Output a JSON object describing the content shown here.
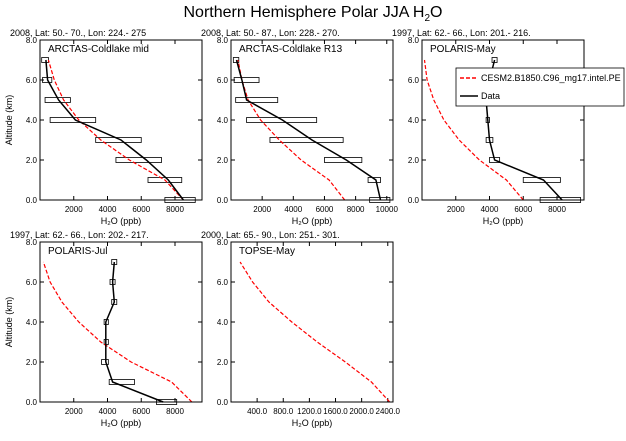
{
  "figure": {
    "title_main": "Northern Hemisphere Polar JJA H",
    "title_sub": "2",
    "title_tail": "O"
  },
  "legend": {
    "entries": [
      {
        "name": "CESM2.B1850.C96_mg17.intel.PE",
        "color": "#ff0000",
        "dash": true
      },
      {
        "name": "Data",
        "color": "#000000",
        "dash": false
      }
    ]
  },
  "chart_data": [
    {
      "type": "line",
      "panel_label": "ARCTAS-Coldlake mid",
      "header": "2008, Lat:  50.- 70., Lon: 224.- 275",
      "xlabel": "H₂O (ppb)",
      "ylabel": "Altitude (km)",
      "xlim": [
        0,
        9600
      ],
      "ylim": [
        0,
        8
      ],
      "xticks": [
        2000,
        4000,
        6000,
        8000
      ],
      "xtick_labels": [
        "2000",
        "4000",
        "6000",
        "8000"
      ],
      "yticks": [
        0,
        2,
        4,
        6,
        8
      ],
      "ytick_labels": [
        "0.0",
        "2.0",
        "4.0",
        "6.0",
        "8.0"
      ],
      "series": [
        {
          "name": "CESM2.B1850.C96_mg17.intel.PE",
          "color": "#ff0000",
          "dash": true,
          "x": [
            8500,
            7400,
            5300,
            3600,
            2300,
            1400,
            850,
            500
          ],
          "y": [
            0,
            1,
            2,
            3,
            4,
            5,
            6,
            7
          ]
        },
        {
          "name": "Data",
          "color": "#000000",
          "dash": false,
          "x": [
            8500,
            7600,
            6300,
            4800,
            2100,
            1100,
            450,
            350
          ],
          "y": [
            0,
            1,
            2,
            3,
            4,
            5,
            6,
            7
          ]
        }
      ],
      "boxes": [
        {
          "y": 7,
          "x1": 100,
          "x2": 500
        },
        {
          "y": 6,
          "x1": 150,
          "x2": 700
        },
        {
          "y": 5,
          "x1": 300,
          "x2": 1800
        },
        {
          "y": 4,
          "x1": 600,
          "x2": 3300
        },
        {
          "y": 3,
          "x1": 3300,
          "x2": 6000
        },
        {
          "y": 2,
          "x1": 4500,
          "x2": 7200
        },
        {
          "y": 1,
          "x1": 6400,
          "x2": 8400
        },
        {
          "y": 0,
          "x1": 7400,
          "x2": 9200
        }
      ]
    },
    {
      "type": "line",
      "panel_label": "ARCTAS-Coldlake R13",
      "header": "2008, Lat:  50.- 87., Lon: 228.- 270.",
      "xlabel": "H₂O (ppb)",
      "ylabel": "",
      "xlim": [
        0,
        10400
      ],
      "ylim": [
        0,
        8
      ],
      "xticks": [
        2000,
        4000,
        6000,
        8000,
        10000
      ],
      "xtick_labels": [
        "2000",
        "4000",
        "6000",
        "8000",
        "10000"
      ],
      "yticks": [
        0,
        2,
        4,
        6,
        8
      ],
      "ytick_labels": [
        "0.0",
        "2.0",
        "4.0",
        "6.0",
        "8.0"
      ],
      "series": [
        {
          "name": "CESM2.B1850.C96_mg17.intel.PE",
          "color": "#ff0000",
          "dash": true,
          "x": [
            7300,
            6300,
            4500,
            3100,
            1900,
            1100,
            700,
            450
          ],
          "y": [
            0,
            1,
            2,
            3,
            4,
            5,
            6,
            7
          ]
        },
        {
          "name": "Data",
          "color": "#000000",
          "dash": false,
          "x": [
            9600,
            9300,
            7400,
            5200,
            3300,
            1000,
            700,
            350
          ],
          "y": [
            0,
            1,
            2,
            3,
            4,
            5,
            6,
            7
          ]
        }
      ],
      "boxes": [
        {
          "y": 7,
          "x1": 150,
          "x2": 500
        },
        {
          "y": 6,
          "x1": 200,
          "x2": 1800
        },
        {
          "y": 5,
          "x1": 300,
          "x2": 3000
        },
        {
          "y": 4,
          "x1": 1000,
          "x2": 5500
        },
        {
          "y": 3,
          "x1": 2500,
          "x2": 7200
        },
        {
          "y": 2,
          "x1": 6000,
          "x2": 8400
        },
        {
          "y": 1,
          "x1": 8800,
          "x2": 9600
        },
        {
          "y": 0,
          "x1": 8900,
          "x2": 10200
        }
      ]
    },
    {
      "type": "line",
      "panel_label": "POLARIS-May",
      "header": "1997, Lat:  62.- 66., Lon: 201.- 216.",
      "xlabel": "H₂O (ppb)",
      "ylabel": "",
      "xlim": [
        0,
        9600
      ],
      "ylim": [
        0,
        8
      ],
      "xticks": [
        2000,
        4000,
        6000,
        8000
      ],
      "xtick_labels": [
        "2000",
        "4000",
        "6000",
        "8000"
      ],
      "yticks": [
        0,
        2,
        4,
        6,
        8
      ],
      "ytick_labels": [
        "0.0",
        "2.0",
        "4.0",
        "6.0",
        "8.0"
      ],
      "series": [
        {
          "name": "CESM2.B1850.C96_mg17.intel.PE",
          "color": "#ff0000",
          "dash": true,
          "x": [
            6000,
            5000,
            3400,
            2200,
            1300,
            700,
            300,
            150
          ],
          "y": [
            0,
            1,
            2,
            3,
            4,
            5,
            6,
            7
          ]
        },
        {
          "name": "Data",
          "color": "#000000",
          "dash": false,
          "x": [
            8300,
            7200,
            4300,
            4000,
            3900,
            3800,
            4000,
            4300
          ],
          "y": [
            0,
            1,
            2,
            3,
            4,
            5,
            6,
            7
          ]
        }
      ],
      "boxes": [
        {
          "y": 7,
          "x1": 4150,
          "x2": 4450
        },
        {
          "y": 6,
          "x1": 3800,
          "x2": 4150
        },
        {
          "y": 5,
          "x1": 3600,
          "x2": 3950
        },
        {
          "y": 4,
          "x1": 3800,
          "x2": 4000
        },
        {
          "y": 3,
          "x1": 3800,
          "x2": 4200
        },
        {
          "y": 2,
          "x1": 4000,
          "x2": 4600
        },
        {
          "y": 1,
          "x1": 6000,
          "x2": 8200
        },
        {
          "y": 0,
          "x1": 7000,
          "x2": 9400
        }
      ]
    },
    {
      "type": "line",
      "panel_label": "POLARIS-Jul",
      "header": "1997, Lat:  62.- 66., Lon: 202.- 217.",
      "xlabel": "H₂O (ppb)",
      "ylabel": "Altitude (km)",
      "xlim": [
        0,
        9600
      ],
      "ylim": [
        0,
        8
      ],
      "xticks": [
        2000,
        4000,
        6000,
        8000
      ],
      "xtick_labels": [
        "2000",
        "4000",
        "6000",
        "8000"
      ],
      "yticks": [
        0,
        2,
        4,
        6,
        8
      ],
      "ytick_labels": [
        "0.0",
        "2.0",
        "4.0",
        "6.0",
        "8.0"
      ],
      "series": [
        {
          "name": "CESM2.B1850.C96_mg17.intel.PE",
          "color": "#ff0000",
          "dash": true,
          "x": [
            9000,
            7800,
            5400,
            3600,
            2300,
            1300,
            600,
            200
          ],
          "y": [
            0,
            1,
            2,
            3,
            4,
            5,
            6,
            7
          ]
        },
        {
          "name": "Data",
          "color": "#000000",
          "dash": false,
          "x": [
            7300,
            4300,
            3900,
            3900,
            3900,
            4400,
            4300,
            4400
          ],
          "y": [
            0,
            1,
            2,
            3,
            4,
            5,
            6,
            7
          ]
        }
      ],
      "boxes": [
        {
          "y": 7,
          "x1": 4250,
          "x2": 4550
        },
        {
          "y": 6,
          "x1": 4150,
          "x2": 4450
        },
        {
          "y": 5,
          "x1": 4250,
          "x2": 4550
        },
        {
          "y": 4,
          "x1": 3800,
          "x2": 4050
        },
        {
          "y": 3,
          "x1": 3800,
          "x2": 4050
        },
        {
          "y": 2,
          "x1": 3650,
          "x2": 4050
        },
        {
          "y": 1,
          "x1": 4100,
          "x2": 5600
        },
        {
          "y": 0,
          "x1": 6900,
          "x2": 8100
        }
      ]
    },
    {
      "type": "line",
      "panel_label": "TOPSE-May",
      "header": "2000, Lat:  65.- 90., Lon: 251.- 301.",
      "xlabel": "H₂O (ppb)",
      "ylabel": "",
      "xlim": [
        0,
        2480
      ],
      "ylim": [
        0,
        8
      ],
      "xticks": [
        400,
        800,
        1200,
        1600,
        2000,
        2400
      ],
      "xtick_labels": [
        "400.0",
        "800.0",
        "1200.0",
        "1600.0",
        "2000.0",
        "2400.0"
      ],
      "yticks": [
        0,
        2,
        4,
        6,
        8
      ],
      "ytick_labels": [
        "0.0",
        "2.0",
        "4.0",
        "6.0",
        "8.0"
      ],
      "series": [
        {
          "name": "CESM2.B1850.C96_mg17.intel.PE",
          "color": "#ff0000",
          "dash": true,
          "x": [
            2430,
            2150,
            1750,
            1320,
            930,
            580,
            330,
            140
          ],
          "y": [
            0,
            1,
            2,
            3,
            4,
            5,
            6,
            7
          ]
        }
      ],
      "boxes": []
    }
  ]
}
